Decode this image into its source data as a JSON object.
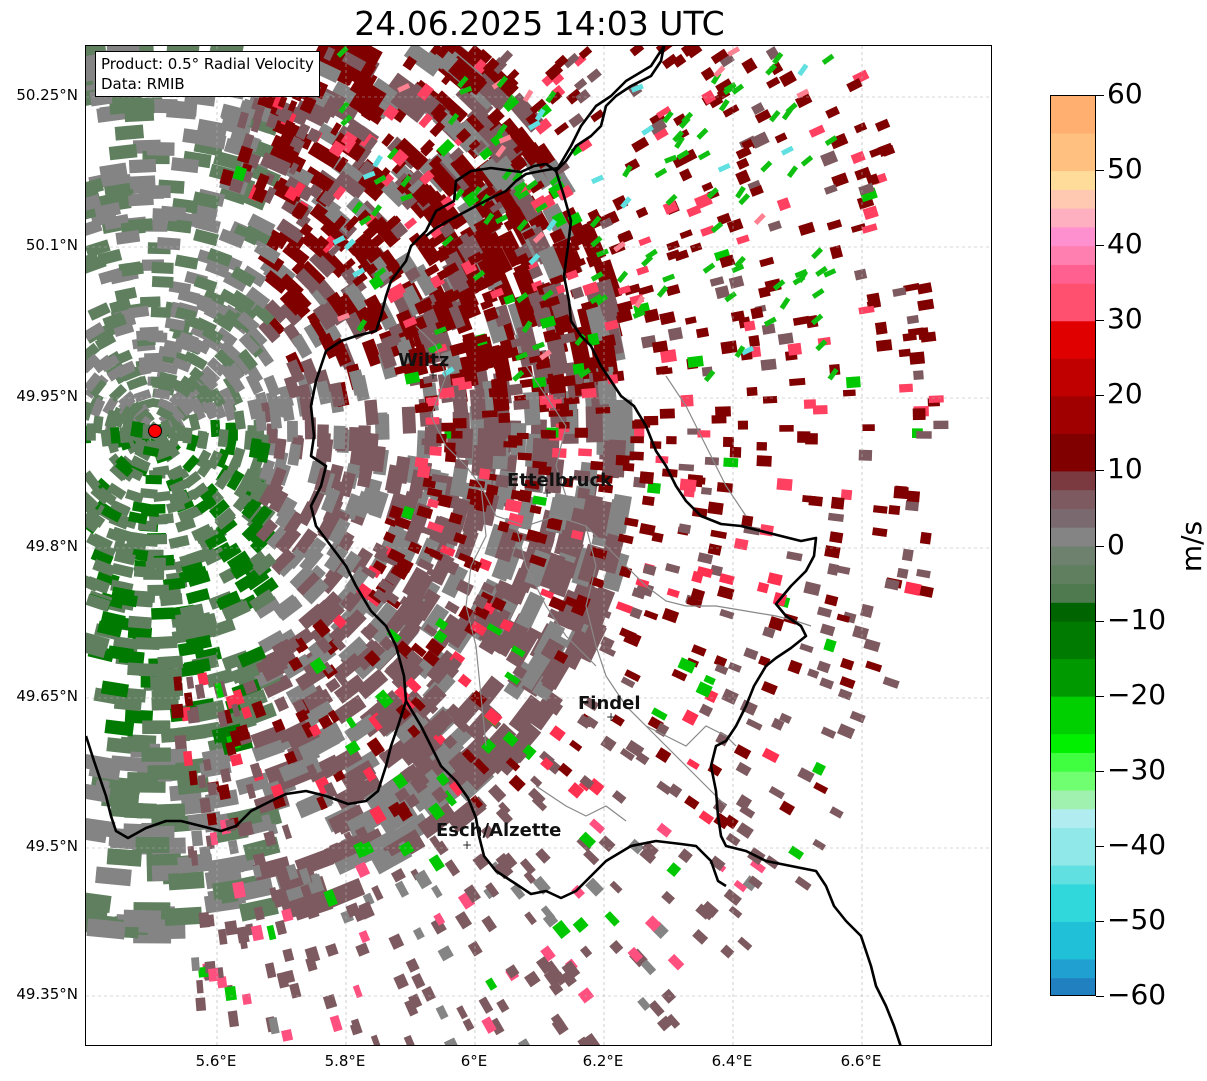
{
  "title": "24.06.2025 14:03 UTC",
  "info": {
    "product": "Product: 0.5° Radial Velocity",
    "data_source": "Data: RMIB"
  },
  "map": {
    "lat_labels": [
      "50.25°N",
      "50.1°N",
      "49.95°N",
      "49.8°N",
      "49.65°N",
      "49.5°N",
      "49.35°N"
    ],
    "lon_labels": [
      "5.6°E",
      "5.8°E",
      "6°E",
      "6.2°E",
      "6.4°E",
      "6.6°E"
    ],
    "cities": [
      {
        "name": "Wiltz"
      },
      {
        "name": "Ettelbruck"
      },
      {
        "name": "Findel"
      },
      {
        "name": "Esch/Alzette"
      }
    ],
    "radar_site_icon": "red-circle-marker",
    "colors": {
      "strong_outbound": "#800000",
      "weak_outbound": "#7d5a5f",
      "near_zero": "#848484",
      "weak_inbound": "#5f7f5f",
      "strong_inbound": "#007a00",
      "border": "#000000",
      "region_border": "#888888"
    }
  },
  "colorbar": {
    "unit": "m/s",
    "min": -60,
    "max": 60,
    "ticks": [
      "60",
      "50",
      "40",
      "30",
      "20",
      "10",
      "0",
      "−10",
      "−20",
      "−30",
      "−40",
      "−50",
      "−60"
    ],
    "tick_values": [
      60,
      50,
      40,
      30,
      20,
      10,
      0,
      -10,
      -20,
      -30,
      -40,
      -50,
      -60
    ]
  }
}
